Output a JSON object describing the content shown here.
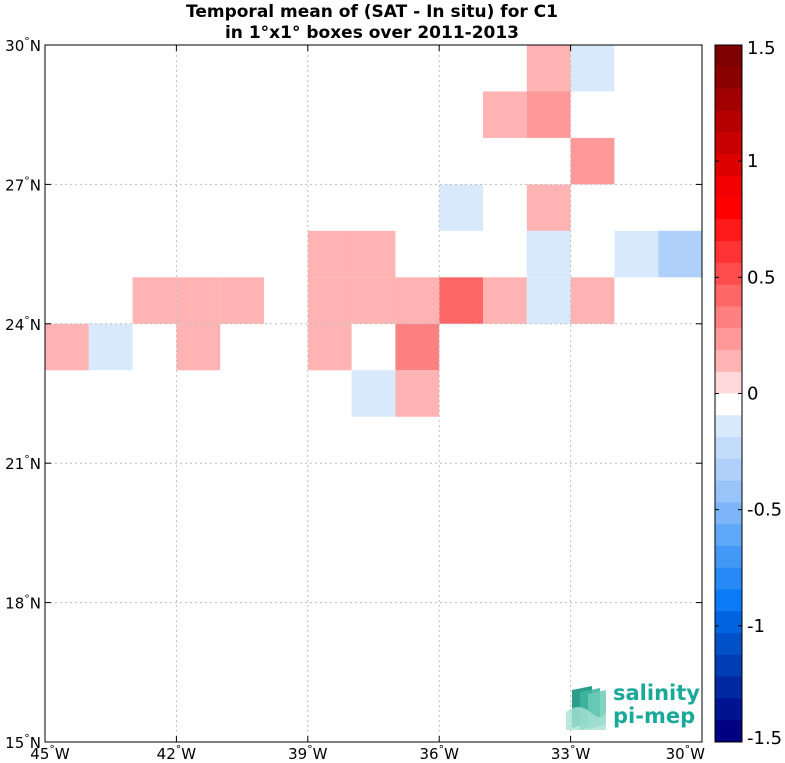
{
  "chart_data": {
    "type": "heatmap",
    "title_line1": "Temporal mean of (SAT - In situ) for C1",
    "title_line2": "in 1°x1° boxes over 2011-2013",
    "x_range": [
      -45,
      -30
    ],
    "y_range": [
      15,
      30
    ],
    "x_ticks": [
      {
        "value": -45,
        "label": "45°W"
      },
      {
        "value": -42,
        "label": "42°W"
      },
      {
        "value": -39,
        "label": "39°W"
      },
      {
        "value": -36,
        "label": "36°W"
      },
      {
        "value": -33,
        "label": "33°W"
      },
      {
        "value": -30,
        "label": "30°W"
      }
    ],
    "y_ticks": [
      {
        "value": 30,
        "label": "30°N"
      },
      {
        "value": 27,
        "label": "27°N"
      },
      {
        "value": 24,
        "label": "24°N"
      },
      {
        "value": 21,
        "label": "21°N"
      },
      {
        "value": 18,
        "label": "18°N"
      },
      {
        "value": 15,
        "label": "15°N"
      }
    ],
    "grid": true,
    "cells": [
      {
        "lon": -34,
        "lat": 29,
        "value": 0.15
      },
      {
        "lon": -33,
        "lat": 29,
        "value": -0.15
      },
      {
        "lon": -35,
        "lat": 28,
        "value": 0.15
      },
      {
        "lon": -34,
        "lat": 28,
        "value": 0.25
      },
      {
        "lon": -33,
        "lat": 27,
        "value": 0.25
      },
      {
        "lon": -36,
        "lat": 26,
        "value": -0.15
      },
      {
        "lon": -34,
        "lat": 26,
        "value": 0.15
      },
      {
        "lon": -39,
        "lat": 25,
        "value": 0.15
      },
      {
        "lon": -38,
        "lat": 25,
        "value": 0.15
      },
      {
        "lon": -34,
        "lat": 25,
        "value": -0.15
      },
      {
        "lon": -32,
        "lat": 25,
        "value": -0.15
      },
      {
        "lon": -31,
        "lat": 25,
        "value": -0.35
      },
      {
        "lon": -43,
        "lat": 24,
        "value": 0.15
      },
      {
        "lon": -42,
        "lat": 24,
        "value": 0.15
      },
      {
        "lon": -41,
        "lat": 24,
        "value": 0.15
      },
      {
        "lon": -39,
        "lat": 24,
        "value": 0.15
      },
      {
        "lon": -38,
        "lat": 24,
        "value": 0.15
      },
      {
        "lon": -37,
        "lat": 24,
        "value": 0.15
      },
      {
        "lon": -36,
        "lat": 24,
        "value": 0.45
      },
      {
        "lon": -35,
        "lat": 24,
        "value": 0.15
      },
      {
        "lon": -34,
        "lat": 24,
        "value": -0.15
      },
      {
        "lon": -33,
        "lat": 24,
        "value": 0.15
      },
      {
        "lon": -45,
        "lat": 23,
        "value": 0.15
      },
      {
        "lon": -44,
        "lat": 23,
        "value": -0.15
      },
      {
        "lon": -42,
        "lat": 23,
        "value": 0.15
      },
      {
        "lon": -39,
        "lat": 23,
        "value": 0.15
      },
      {
        "lon": -37,
        "lat": 23,
        "value": 0.3
      },
      {
        "lon": -38,
        "lat": 22,
        "value": -0.15
      },
      {
        "lon": -37,
        "lat": 22,
        "value": 0.15
      }
    ],
    "colorbar": {
      "range": [
        -1.5,
        1.5
      ],
      "ticks": [
        {
          "value": 1.5,
          "label": "1.5"
        },
        {
          "value": 1,
          "label": "1"
        },
        {
          "value": 0.5,
          "label": "0.5"
        },
        {
          "value": 0,
          "label": "0"
        },
        {
          "value": -0.5,
          "label": "-0.5"
        },
        {
          "value": -1,
          "label": "-1"
        },
        {
          "value": -1.5,
          "label": "-1.5"
        }
      ],
      "colors_top_to_bottom": [
        "#7f0000",
        "#8b0000",
        "#a00000",
        "#b40000",
        "#c80000",
        "#dc0000",
        "#f00000",
        "#ff0000",
        "#ff1a1a",
        "#ff3333",
        "#ff4d4d",
        "#ff6666",
        "#ff8080",
        "#ff9999",
        "#ffb3b3",
        "#ffd9d9",
        "#ffffff",
        "#d9e9fc",
        "#c3dcfb",
        "#aed0fa",
        "#99c4f9",
        "#7cb6f8",
        "#5fa7f7",
        "#4398f6",
        "#2689f5",
        "#0a7bf4",
        "#0063e0",
        "#0050c8",
        "#003cb4",
        "#0028a0",
        "#001490",
        "#000080"
      ]
    }
  },
  "logo": {
    "line1": "salinity",
    "line2": "pi-mep",
    "color": "#1aa89a"
  }
}
